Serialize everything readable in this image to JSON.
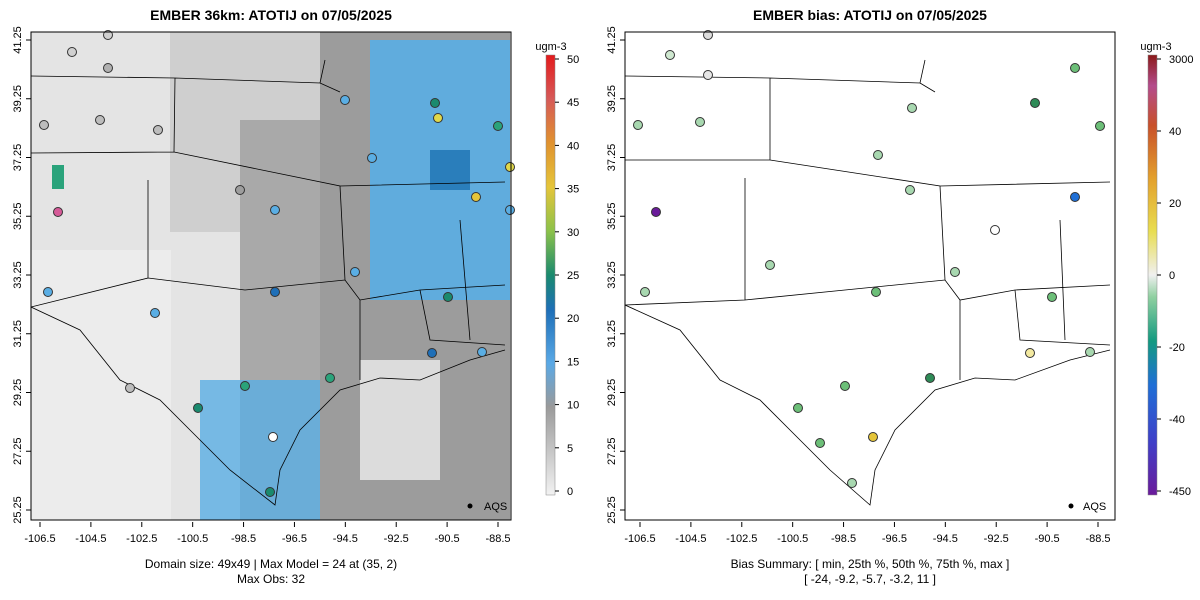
{
  "left": {
    "title": "EMBER 36km: ATOTIJ on 07/05/2025",
    "colorbar_unit": "ugm-3",
    "colorbar_ticks": [
      "50",
      "45",
      "40",
      "35",
      "30",
      "25",
      "20",
      "15",
      "10",
      "5",
      "0"
    ],
    "caption_line1": "Domain size: 49x49 | Max Model = 24 at (35, 2)",
    "caption_line2": "Max Obs: 32",
    "legend_label": "AQS"
  },
  "right": {
    "title": "EMBER bias: ATOTIJ on 07/05/2025",
    "colorbar_unit": "ugm-3",
    "colorbar_ticks": [
      "3000",
      "40",
      "20",
      "0",
      "-20",
      "-40",
      "-450"
    ],
    "caption_line1": "Bias Summary: [ min, 25th %, 50th %, 75th %, max ]",
    "caption_line2": "[ -24,   -9.2,   -5.7,   -3.2,   11 ]",
    "legend_label": "AQS"
  },
  "axes": {
    "lon_ticks": [
      "-106.5",
      "-104.5",
      "-102.5",
      "-100.5",
      "-98.5",
      "-96.5",
      "-94.5",
      "-92.5",
      "-90.5",
      "-88.5"
    ],
    "lat_ticks": [
      "41.25",
      "39.25",
      "37.25",
      "35.25",
      "33.25",
      "31.25",
      "29.25",
      "27.25",
      "25.25"
    ]
  },
  "colors": {
    "model_low": "#e6e6e6",
    "model_mid": "#9e9e9e",
    "model_high": "#5dade2",
    "bias_neg": "#a8d8b0",
    "bias_strong": "#2e8b57"
  }
}
